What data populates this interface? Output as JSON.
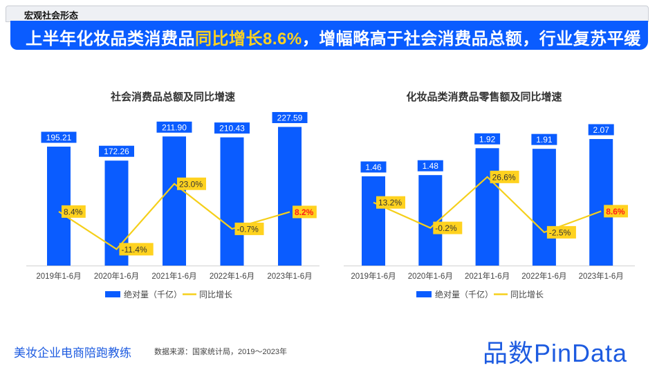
{
  "header": {
    "section": "宏观社会形态",
    "title_pre": "上半年化妆品类消费品",
    "title_highlight": "同比增长8.6%",
    "title_post": "，增幅略高于社会消费品总额，行业复苏平缓"
  },
  "footer": {
    "brand_text": "美妆企业电商陪跑教练",
    "source": "数据来源：国家统计局，2019～2023年",
    "logo": "品数PinData"
  },
  "colors": {
    "bar": "#0a5cff",
    "line": "#f5cf1a",
    "label_bg": "#ffd21f",
    "highlight_text": "#ff1a1a"
  },
  "chart_data": [
    {
      "type": "bar+line",
      "title": "社会消费品总额及同比增速",
      "categories": [
        "2019年1-6月",
        "2020年1-6月",
        "2021年1-6月",
        "2022年1-6月",
        "2023年1-6月"
      ],
      "series": [
        {
          "name": "绝对量（千亿）",
          "type": "bar",
          "values": [
            195.21,
            172.26,
            211.9,
            210.43,
            227.59
          ],
          "labels": [
            "195.21",
            "172.26",
            "211.90",
            "210.43",
            "227.59"
          ]
        },
        {
          "name": "同比增长",
          "type": "line",
          "values": [
            8.4,
            -11.4,
            23.0,
            -0.7,
            8.2
          ],
          "labels": [
            "8.4%",
            "-11.4%",
            "23.0%",
            "-0.7%",
            "8.2%"
          ]
        }
      ],
      "highlight_index": 4,
      "legend": "bottom"
    },
    {
      "type": "bar+line",
      "title": "化妆品类消费品零售额及同比增速",
      "categories": [
        "2019年1-6月",
        "2020年1-6月",
        "2021年1-6月",
        "2022年1-6月",
        "2023年1-6月"
      ],
      "series": [
        {
          "name": "绝对量（千亿）",
          "type": "bar",
          "values": [
            1.46,
            1.48,
            1.92,
            1.91,
            2.07
          ],
          "labels": [
            "1.46",
            "1.48",
            "1.92",
            "1.91",
            "2.07"
          ]
        },
        {
          "name": "同比增长",
          "type": "line",
          "values": [
            13.2,
            -0.2,
            26.6,
            -2.5,
            8.6
          ],
          "labels": [
            "13.2%",
            "-0.2%",
            "26.6%",
            "-2.5%",
            "8.6%"
          ]
        }
      ],
      "highlight_index": 4,
      "legend": "bottom"
    }
  ]
}
